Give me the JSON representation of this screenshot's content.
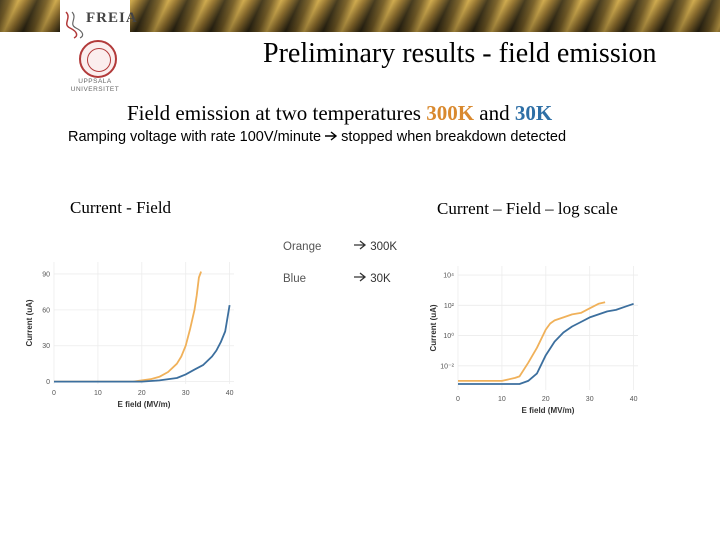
{
  "header": {
    "title": "Preliminary results - field emission",
    "logo_text": "FREIA",
    "university": [
      "UPPSALA",
      "UNIVERSITET"
    ]
  },
  "subtitle": {
    "prefix": "Field emission at two temperatures ",
    "t1": "300K",
    "mid": " and ",
    "t2": "30K"
  },
  "ramp_text": {
    "before": "Ramping voltage with rate 100V/minute",
    "after": "stopped when breakdown detected"
  },
  "captions": {
    "linear": "Current - Field",
    "log": "Current – Field – log scale"
  },
  "legend": [
    {
      "color_word": "Orange",
      "arrow_text": "300K",
      "color": "#f0b15a"
    },
    {
      "color_word": "Blue",
      "arrow_text": "30K",
      "color": "#3c6f9e"
    }
  ],
  "colors": {
    "orange": "#f0b15a",
    "blue": "#3c6f9e",
    "banner_gold": "#c9a449",
    "t300_text": "#d9892e",
    "t30_text": "#2e6fa6"
  },
  "chart_data": [
    {
      "type": "line",
      "title": "",
      "xlabel": "E field (MV/m)",
      "ylabel": "Current (uA)",
      "xlim": [
        0,
        41
      ],
      "ylim": [
        -2,
        100
      ],
      "xticks": [
        0,
        10,
        20,
        30,
        40
      ],
      "yticks": [
        0,
        30,
        60,
        90
      ],
      "ytick_labels": [
        "0",
        "30",
        "60",
        "90"
      ],
      "grid": true,
      "series": [
        {
          "color": "#f0b15a",
          "x": [
            0,
            18,
            20,
            22,
            24,
            26,
            28,
            29,
            30,
            31,
            32,
            32.5,
            33,
            33.5
          ],
          "y": [
            0,
            0,
            1,
            2,
            4,
            8,
            15,
            21,
            30,
            44,
            60,
            72,
            87,
            92
          ]
        },
        {
          "color": "#3c6f9e",
          "x": [
            0,
            20,
            24,
            28,
            30,
            32,
            34,
            36,
            37,
            38,
            39,
            40
          ],
          "y": [
            0,
            0,
            1,
            3,
            6,
            10,
            14,
            21,
            26,
            33,
            42,
            64
          ]
        }
      ]
    },
    {
      "type": "line",
      "title": "",
      "xlabel": "E field (MV/m)",
      "ylabel": "Current (uA)",
      "xlim": [
        0,
        41
      ],
      "ylim": [
        -3.6,
        4.6
      ],
      "log_scale_y": true,
      "xticks": [
        0,
        10,
        20,
        30,
        40
      ],
      "yticks": [
        -2,
        0,
        2,
        4
      ],
      "ytick_labels": [
        "10⁻²",
        "10⁰",
        "10²",
        "10⁴"
      ],
      "grid": true,
      "series": [
        {
          "color": "#f0b15a",
          "x": [
            0,
            10,
            13,
            14,
            16,
            18,
            19,
            20,
            21,
            22,
            24,
            26,
            28,
            30,
            32,
            33.5
          ],
          "y": [
            -3.0,
            -3.0,
            -2.8,
            -2.7,
            -1.8,
            -0.8,
            -0.2,
            0.4,
            0.8,
            1.0,
            1.2,
            1.4,
            1.5,
            1.8,
            2.1,
            2.2
          ]
        },
        {
          "color": "#3c6f9e",
          "x": [
            0,
            14,
            16,
            18,
            20,
            22,
            24,
            26,
            28,
            30,
            32,
            34,
            36,
            38,
            40
          ],
          "y": [
            -3.2,
            -3.2,
            -3.0,
            -2.5,
            -1.3,
            -0.4,
            0.2,
            0.6,
            0.9,
            1.2,
            1.4,
            1.6,
            1.7,
            1.9,
            2.1
          ]
        }
      ]
    }
  ]
}
